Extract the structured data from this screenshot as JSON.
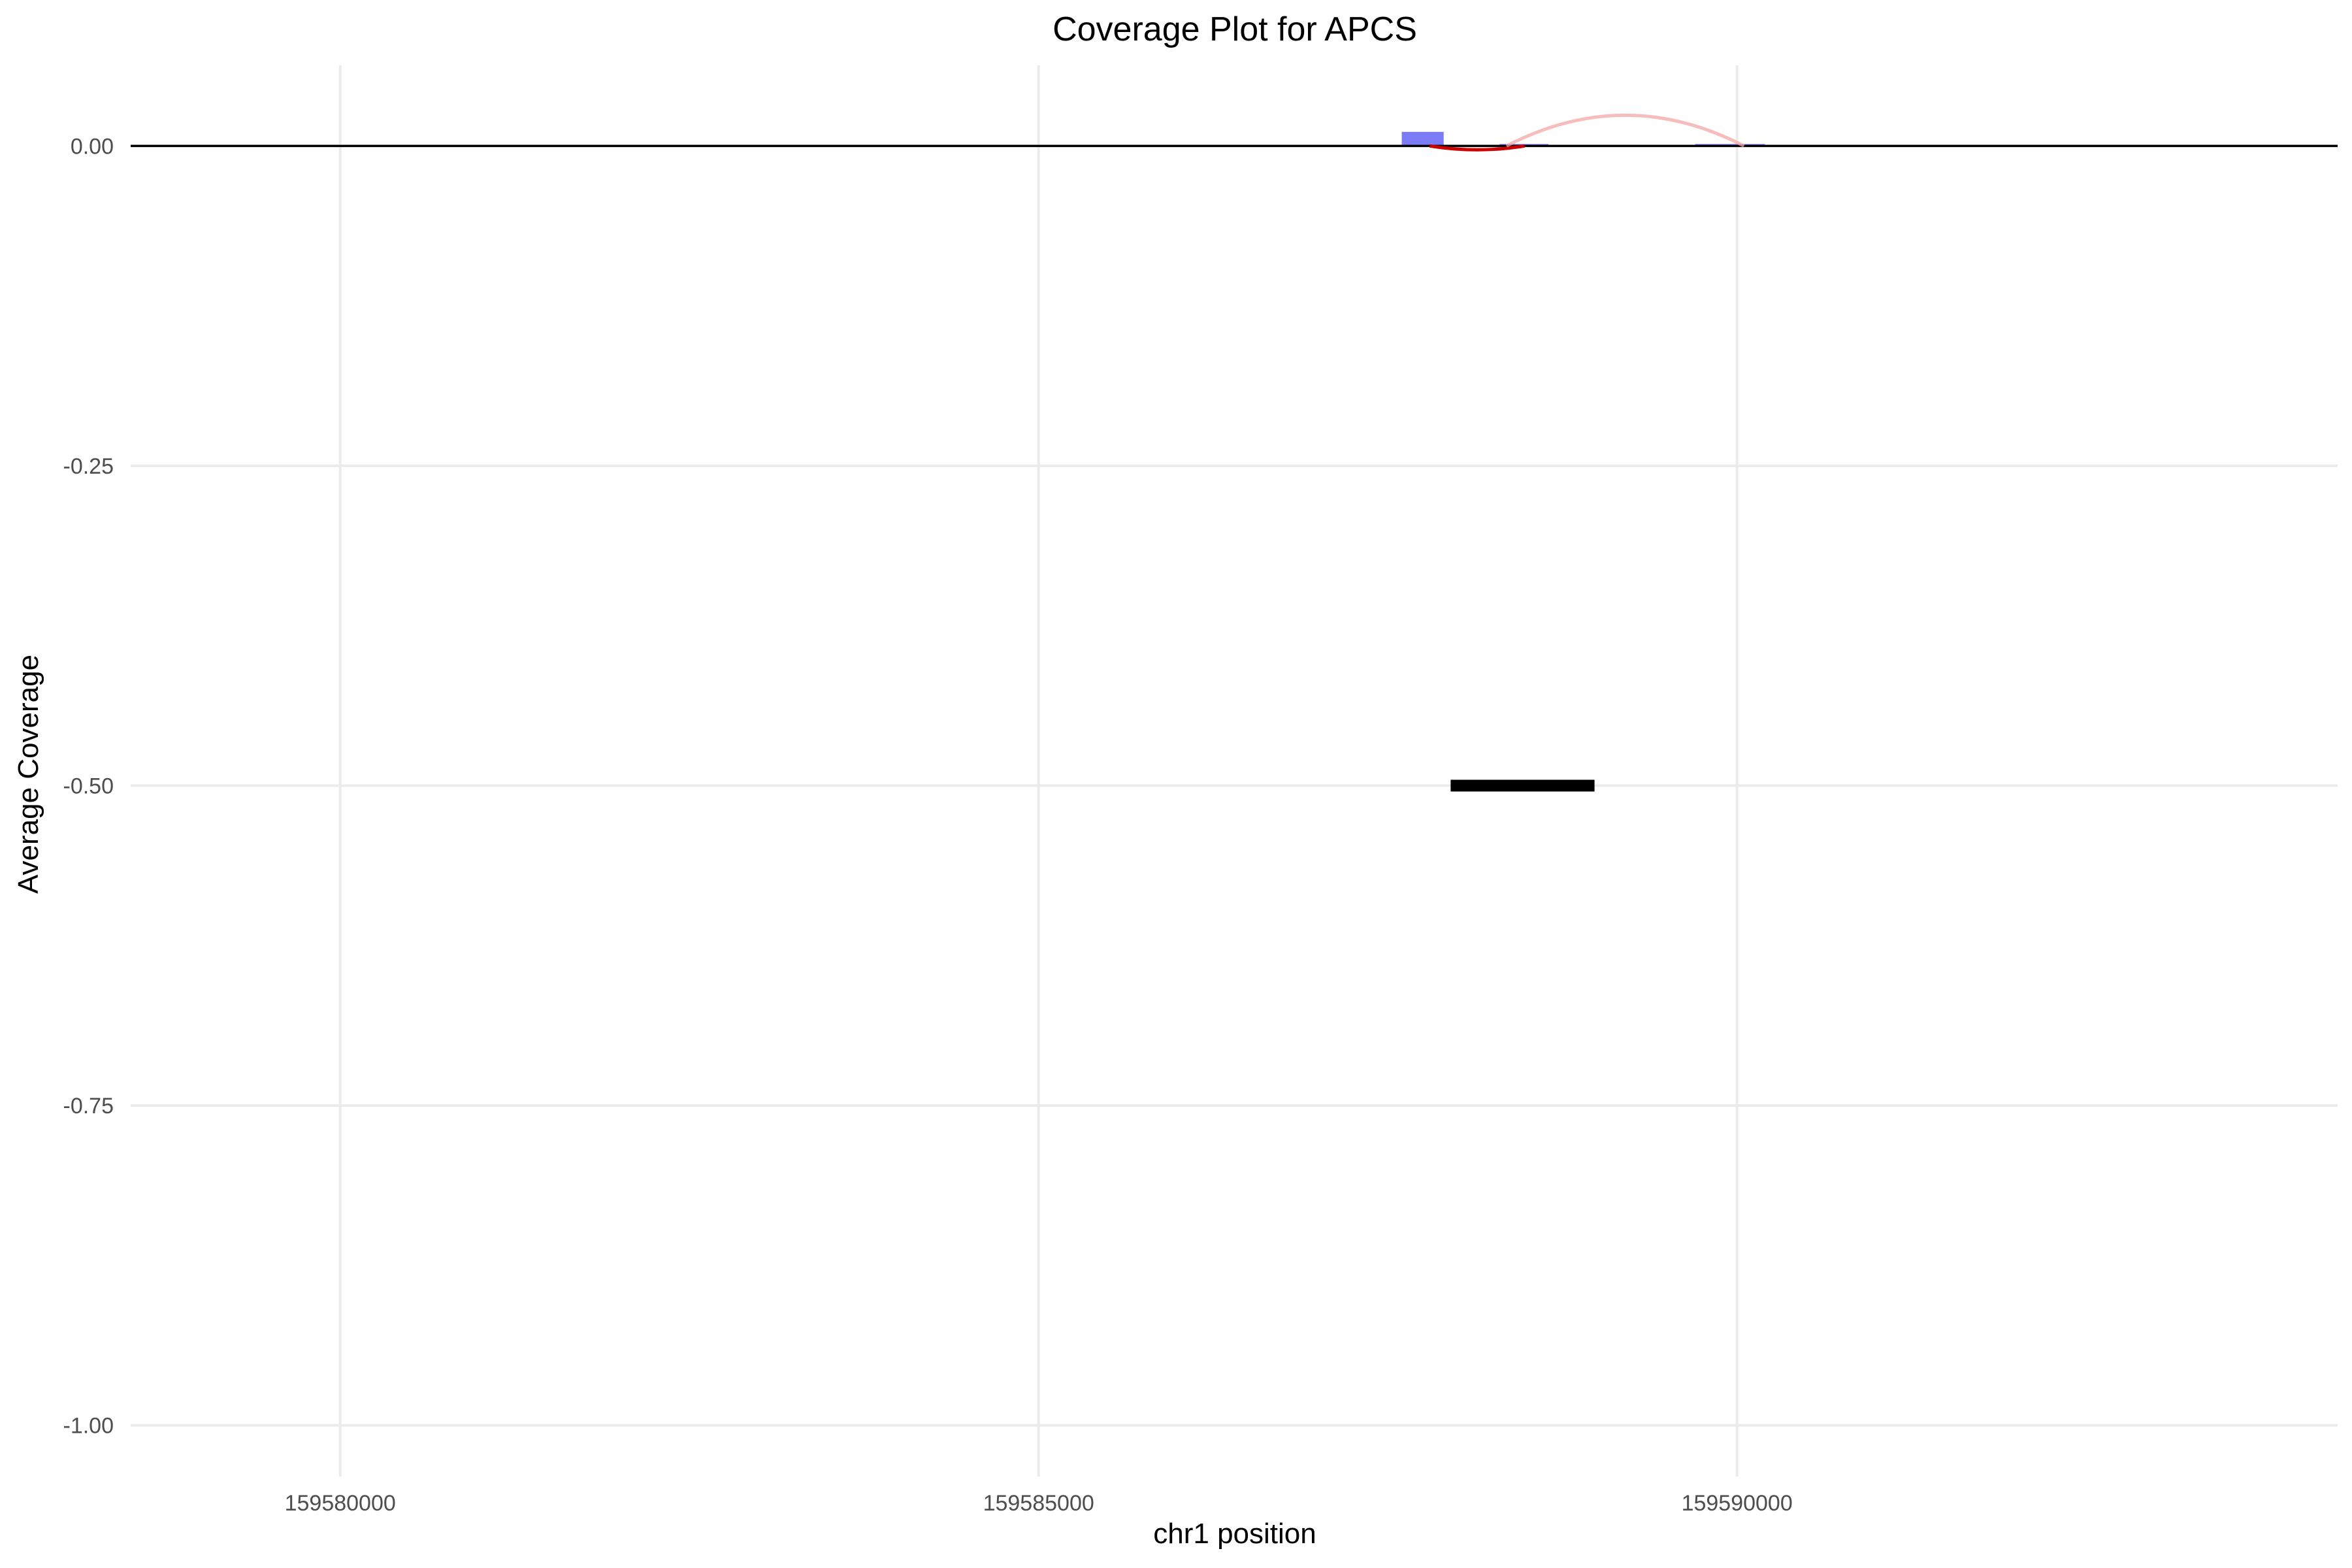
{
  "chart_data": {
    "type": "bar",
    "title": "Coverage Plot for APCS",
    "xlabel": "chr1 position",
    "ylabel": "Average Coverage",
    "xlim": [
      159578500,
      159594300
    ],
    "ylim": [
      -1.04,
      0.063
    ],
    "x_ticks": [
      159580000,
      159585000,
      159590000
    ],
    "x_tick_labels": [
      "159580000",
      "159585000",
      "159590000"
    ],
    "y_ticks": [
      0,
      -0.25,
      -0.5,
      -0.75,
      -1
    ],
    "y_tick_labels": [
      "0.00",
      "-0.25",
      "-0.50",
      "-0.75",
      "-1.00"
    ],
    "grid": true,
    "zero_line": 0,
    "coverage_bars": [
      {
        "x0": 159587600,
        "x1": 159587900,
        "value": 0.011
      },
      {
        "x0": 159588300,
        "x1": 159588650,
        "value": 0.0015
      },
      {
        "x0": 159589700,
        "x1": 159590200,
        "value": 0.0015
      }
    ],
    "gene_segment": {
      "x0": 159587950,
      "x1": 159588980,
      "y": -0.5
    },
    "arcs": [
      {
        "x0": 159587800,
        "x1": 159588480,
        "height": -0.003,
        "color": "#cc0000",
        "opacity": 1
      },
      {
        "x0": 159588350,
        "x1": 159590050,
        "height": 0.024,
        "color": "#f4a6a6",
        "opacity": 0.75
      }
    ],
    "colors": {
      "bar": "#7b7bf5",
      "gene": "#000000",
      "axis_line": "#000000",
      "grid": "#ebebeb"
    }
  }
}
